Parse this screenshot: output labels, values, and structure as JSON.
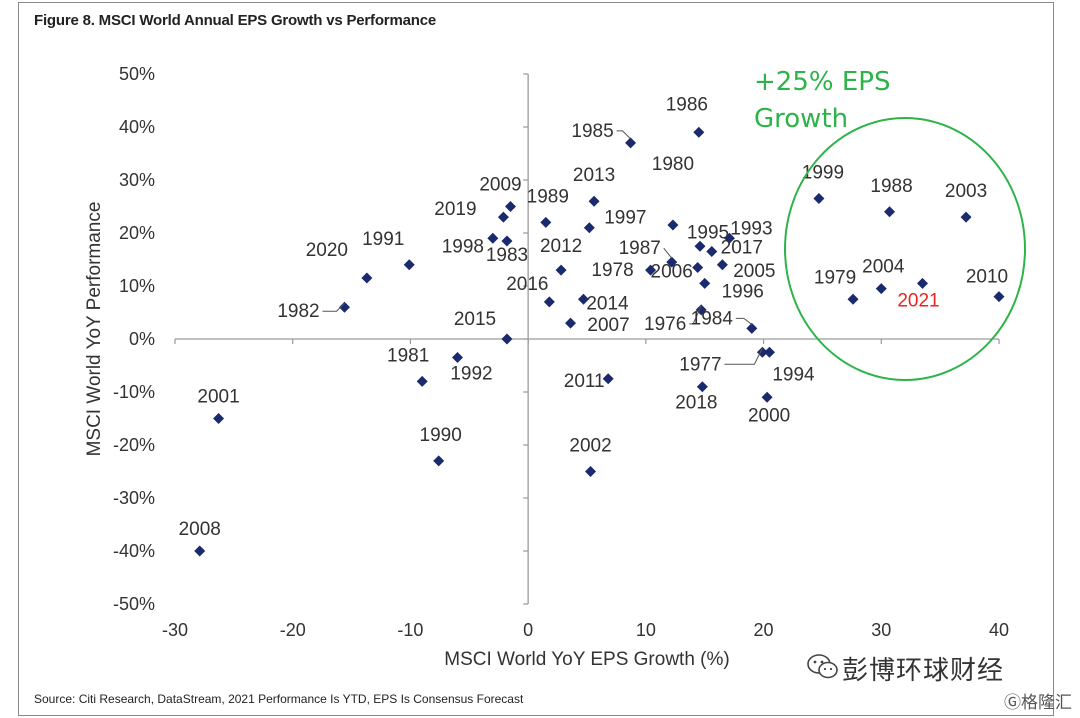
{
  "title": "Figure 8. MSCI World Annual EPS Growth vs Performance",
  "source": "Source: Citi Research, DataStream, 2021 Performance Is YTD, EPS Is Consensus Forecast",
  "watermark": "彭博环球财经",
  "watermark_sub": "格隆汇",
  "chart_data": {
    "type": "scatter",
    "title": "Figure 8. MSCI World Annual EPS Growth vs Performance",
    "xlabel": "MSCI World YoY EPS Growth (%)",
    "ylabel": "MSCI World YoY Performance",
    "xlim": [
      -30,
      40
    ],
    "ylim": [
      -50,
      50
    ],
    "xticks": [
      -30,
      -20,
      -10,
      0,
      10,
      20,
      30,
      40
    ],
    "xtick_labels": [
      "-30",
      "-20",
      "-10",
      "0",
      "10",
      "20",
      "30",
      "40"
    ],
    "yticks": [
      50,
      40,
      30,
      20,
      10,
      0,
      -10,
      -20,
      -30,
      -40,
      -50
    ],
    "ytick_labels": [
      "50%",
      "40%",
      "30%",
      "20%",
      "10%",
      "0%",
      "-10%",
      "-20%",
      "-30%",
      "-40%",
      "-50%"
    ],
    "grid": false,
    "marker_color": "#1a2a6c",
    "highlight_color": "#e8251f",
    "annotation_color": "#2db34a",
    "annotation": "+25% EPS Growth",
    "points": [
      {
        "label": "1985",
        "x": 8.7,
        "y": 37
      },
      {
        "label": "1986",
        "x": 14.5,
        "y": 39
      },
      {
        "label": "2013",
        "x": 5.6,
        "y": 26
      },
      {
        "label": "1980",
        "x": 12.3,
        "y": 21.5
      },
      {
        "label": "2009",
        "x": -1.5,
        "y": 25
      },
      {
        "label": "1989",
        "x": 1.5,
        "y": 22
      },
      {
        "label": "1997",
        "x": 5.2,
        "y": 21
      },
      {
        "label": "2019",
        "x": -2.1,
        "y": 23
      },
      {
        "label": "1995",
        "x": 14.6,
        "y": 17.5
      },
      {
        "label": "1993",
        "x": 17.1,
        "y": 19
      },
      {
        "label": "1998",
        "x": -3.0,
        "y": 19
      },
      {
        "label": "1983",
        "x": -1.8,
        "y": 18.5
      },
      {
        "label": "1991",
        "x": -10.1,
        "y": 14
      },
      {
        "label": "2012",
        "x": 2.8,
        "y": 13
      },
      {
        "label": "1987",
        "x": 12.2,
        "y": 14.5
      },
      {
        "label": "2017",
        "x": 15.6,
        "y": 16.5
      },
      {
        "label": "2005",
        "x": 16.5,
        "y": 14
      },
      {
        "label": "1978",
        "x": 10.4,
        "y": 13
      },
      {
        "label": "2006",
        "x": 14.4,
        "y": 13.5
      },
      {
        "label": "1996",
        "x": 15.0,
        "y": 10.5
      },
      {
        "label": "2020",
        "x": -13.7,
        "y": 11.5
      },
      {
        "label": "1982",
        "x": -15.6,
        "y": 6
      },
      {
        "label": "2016",
        "x": 1.8,
        "y": 7
      },
      {
        "label": "2014",
        "x": 4.7,
        "y": 7.5
      },
      {
        "label": "2007",
        "x": 3.6,
        "y": 3
      },
      {
        "label": "1976",
        "x": 14.7,
        "y": 5.5
      },
      {
        "label": "1984",
        "x": 19.0,
        "y": 2
      },
      {
        "label": "2015",
        "x": -1.8,
        "y": 0
      },
      {
        "label": "1981",
        "x": -9.0,
        "y": -8
      },
      {
        "label": "1992",
        "x": -6.0,
        "y": -3.5
      },
      {
        "label": "1977",
        "x": 19.9,
        "y": -2.5
      },
      {
        "label": "1994",
        "x": 20.5,
        "y": -2.5
      },
      {
        "label": "2011",
        "x": 6.8,
        "y": -7.5
      },
      {
        "label": "2018",
        "x": 14.8,
        "y": -9
      },
      {
        "label": "2000",
        "x": 20.3,
        "y": -11
      },
      {
        "label": "2001",
        "x": -26.3,
        "y": -15
      },
      {
        "label": "1990",
        "x": -7.6,
        "y": -23
      },
      {
        "label": "2002",
        "x": 5.3,
        "y": -25
      },
      {
        "label": "2008",
        "x": -27.9,
        "y": -40
      },
      {
        "label": "1999",
        "x": 24.7,
        "y": 26.5
      },
      {
        "label": "1988",
        "x": 30.7,
        "y": 24
      },
      {
        "label": "2003",
        "x": 37.2,
        "y": 23
      },
      {
        "label": "1979",
        "x": 27.6,
        "y": 7.5
      },
      {
        "label": "2004",
        "x": 30.0,
        "y": 9.5
      },
      {
        "label": "2021",
        "x": 33.5,
        "y": 10.5
      },
      {
        "label": "2010",
        "x": 40.0,
        "y": 8
      }
    ]
  }
}
